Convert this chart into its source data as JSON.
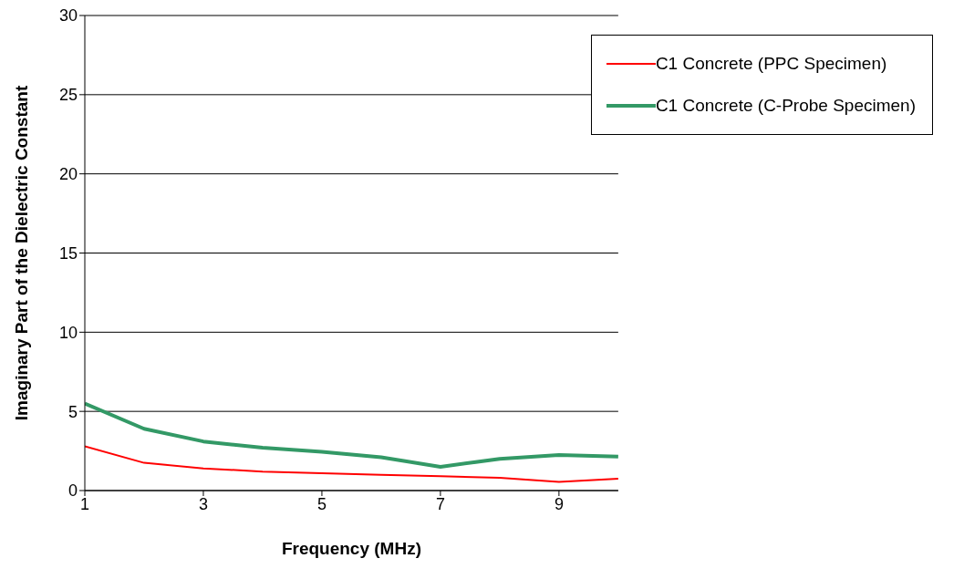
{
  "chart_data": {
    "type": "line",
    "xlabel": "Frequency (MHz)",
    "ylabel": "Imaginary Part of the Dielectric Constant",
    "x": [
      1,
      2,
      3,
      4,
      5,
      6,
      7,
      8,
      9,
      10
    ],
    "series": [
      {
        "name": "C1 Concrete (PPC Specimen)",
        "color": "#ff0000",
        "values": [
          2.8,
          1.75,
          1.4,
          1.2,
          1.1,
          1.0,
          0.9,
          0.8,
          0.55,
          0.75
        ]
      },
      {
        "name": "C1 Concrete (C-Probe Specimen)",
        "color": "#339966",
        "values": [
          5.5,
          3.9,
          3.1,
          2.7,
          2.45,
          2.1,
          1.5,
          2.0,
          2.25,
          2.15
        ]
      }
    ],
    "xlim": [
      1,
      10
    ],
    "xticks": [
      1,
      3,
      5,
      7,
      9
    ],
    "ylim": [
      0,
      30
    ],
    "yticks": [
      0,
      5,
      10,
      15,
      20,
      25,
      30
    ],
    "grid": "y",
    "legend": "top right",
    "marker": "none",
    "line_style": "solid"
  }
}
